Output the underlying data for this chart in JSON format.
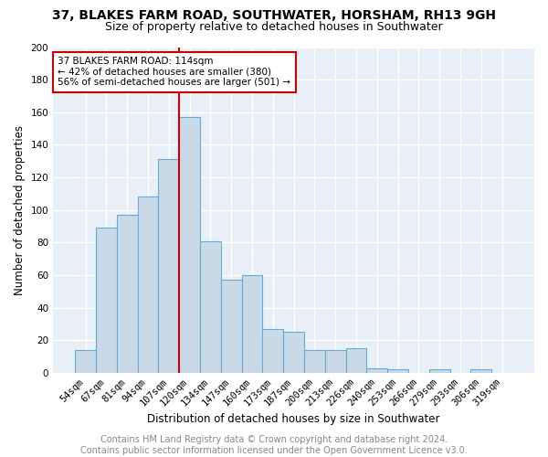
{
  "title": "37, BLAKES FARM ROAD, SOUTHWATER, HORSHAM, RH13 9GH",
  "subtitle": "Size of property relative to detached houses in Southwater",
  "xlabel": "Distribution of detached houses by size in Southwater",
  "ylabel": "Number of detached properties",
  "bar_labels": [
    "54sqm",
    "67sqm",
    "81sqm",
    "94sqm",
    "107sqm",
    "120sqm",
    "134sqm",
    "147sqm",
    "160sqm",
    "173sqm",
    "187sqm",
    "200sqm",
    "213sqm",
    "226sqm",
    "240sqm",
    "253sqm",
    "266sqm",
    "279sqm",
    "293sqm",
    "306sqm",
    "319sqm"
  ],
  "bar_values": [
    14,
    89,
    97,
    108,
    131,
    157,
    81,
    57,
    60,
    27,
    25,
    14,
    14,
    15,
    3,
    2,
    0,
    2,
    0,
    2,
    0
  ],
  "bar_color": "#c9d9e8",
  "bar_edge_color": "#6aaacf",
  "vline_x_idx": 4.5,
  "vline_color": "#cc0000",
  "annotation_text": "37 BLAKES FARM ROAD: 114sqm\n← 42% of detached houses are smaller (380)\n56% of semi-detached houses are larger (501) →",
  "annotation_box_color": "white",
  "annotation_box_edge_color": "#cc0000",
  "footer_text": "Contains HM Land Registry data © Crown copyright and database right 2024.\nContains public sector information licensed under the Open Government Licence v3.0.",
  "ylim": [
    0,
    200
  ],
  "yticks": [
    0,
    20,
    40,
    60,
    80,
    100,
    120,
    140,
    160,
    180,
    200
  ],
  "bg_color": "#e8eff6",
  "grid_color": "#ffffff",
  "title_fontsize": 10,
  "subtitle_fontsize": 9,
  "xlabel_fontsize": 8.5,
  "ylabel_fontsize": 8.5,
  "tick_fontsize": 7.5,
  "footer_fontsize": 7,
  "annotation_fontsize": 7.5
}
